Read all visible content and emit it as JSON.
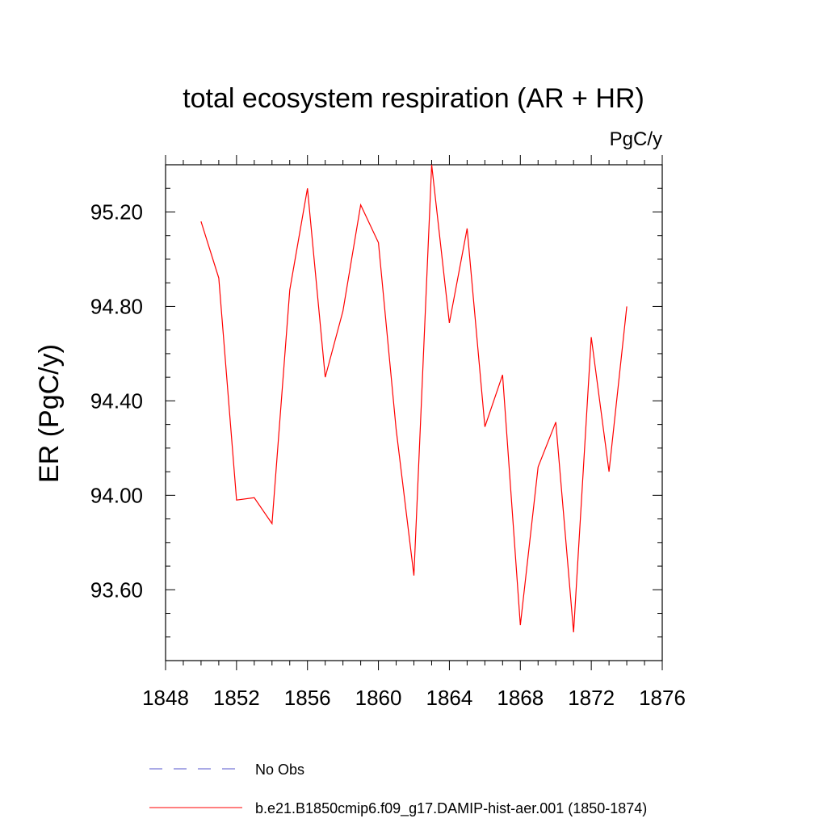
{
  "chart_data": {
    "type": "line",
    "title": "total ecosystem respiration (AR + HR)",
    "units_label": "PgC/y",
    "xlabel": "",
    "ylabel": "ER  (PgC/y)",
    "xlim": [
      1848,
      1876
    ],
    "ylim": [
      93.3,
      95.4
    ],
    "x_ticks": [
      1848,
      1852,
      1856,
      1860,
      1864,
      1868,
      1872,
      1876
    ],
    "x_tick_labels": [
      "1848",
      "1852",
      "1856",
      "1860",
      "1864",
      "1868",
      "1872",
      "1876"
    ],
    "y_ticks": [
      93.6,
      94.0,
      94.4,
      94.8,
      95.2
    ],
    "y_tick_labels": [
      "93.60",
      "94.00",
      "94.40",
      "94.80",
      "95.20"
    ],
    "grid": false,
    "legend_position": "bottom",
    "series": [
      {
        "name": "b.e21.B1850cmip6.f09_g17.DAMIP-hist-aer.001 (1850-1874)",
        "color": "#ff0000",
        "line_style": "solid",
        "x": [
          1850,
          1851,
          1852,
          1853,
          1854,
          1855,
          1856,
          1857,
          1858,
          1859,
          1860,
          1861,
          1862,
          1863,
          1864,
          1865,
          1866,
          1867,
          1868,
          1869,
          1870,
          1871,
          1872,
          1873,
          1874
        ],
        "values": [
          95.16,
          94.92,
          93.98,
          93.99,
          93.88,
          94.87,
          95.3,
          94.5,
          94.78,
          95.23,
          95.07,
          94.28,
          93.66,
          95.4,
          94.73,
          95.13,
          94.29,
          94.51,
          93.45,
          94.12,
          94.31,
          93.42,
          94.67,
          94.1,
          94.8
        ]
      }
    ],
    "legend": [
      {
        "label": "No Obs",
        "color": "#5555cc",
        "line_style": "dashed"
      },
      {
        "label": "b.e21.B1850cmip6.f09_g17.DAMIP-hist-aer.001 (1850-1874)",
        "color": "#ff0000",
        "line_style": "solid"
      }
    ]
  }
}
